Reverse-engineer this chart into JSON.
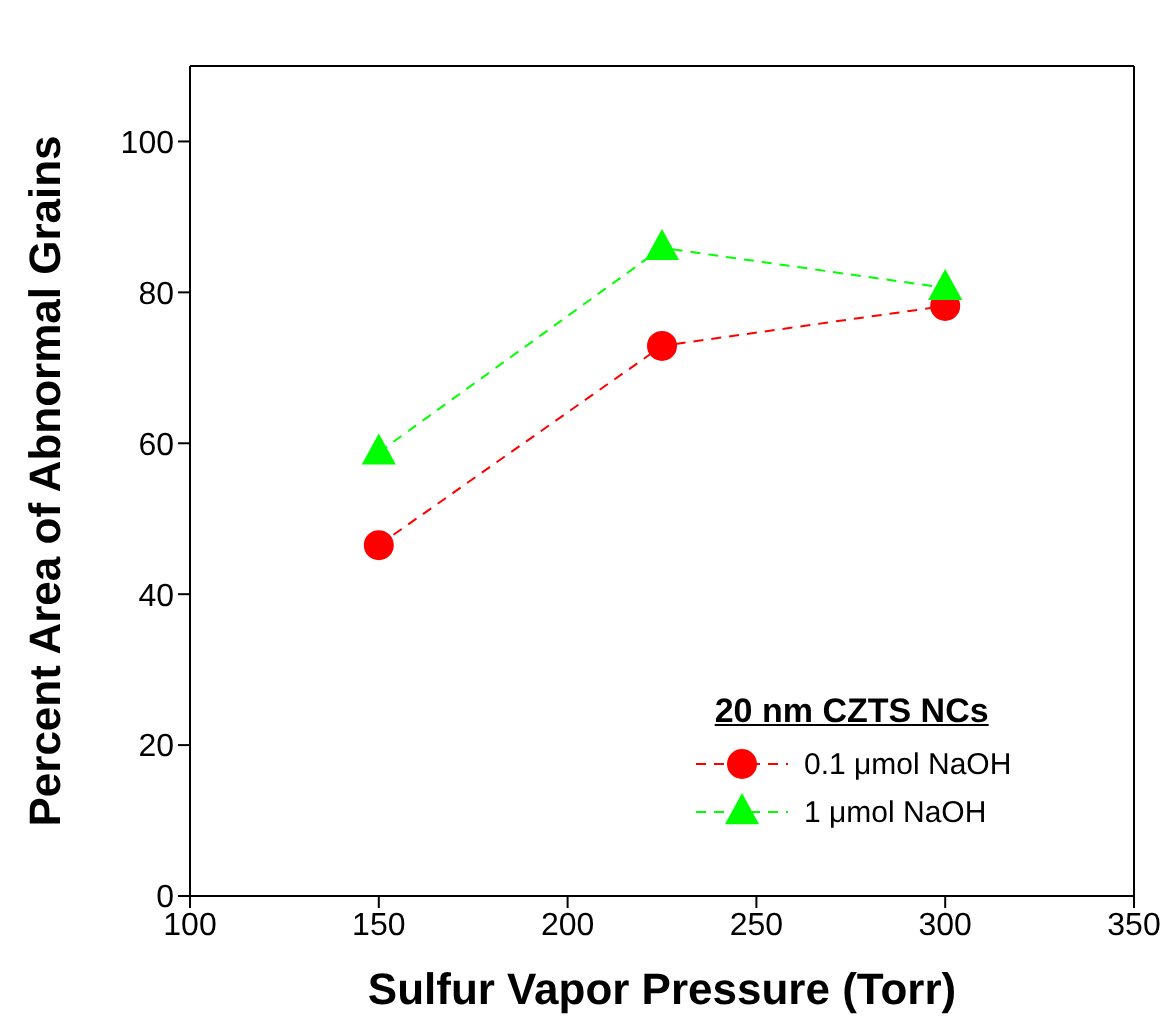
{
  "chart_data": {
    "type": "line",
    "xlabel": "Sulfur Vapor Pressure (Torr)",
    "ylabel": "Percent Area of Abnormal Grains",
    "legend_title": "20 nm CZTS NCs",
    "legend": "bottom right",
    "line_style": "dashed",
    "grid": false,
    "x": [
      150,
      225,
      300
    ],
    "xlim": [
      100,
      350
    ],
    "xticks": [
      100,
      150,
      200,
      250,
      300,
      350
    ],
    "ylim": [
      0,
      110
    ],
    "yticks": [
      0,
      20,
      40,
      60,
      80,
      100
    ],
    "series": [
      {
        "name": "0.1 μmol NaOH",
        "color": "#ff0000",
        "marker": "circle",
        "values": [
          46.5,
          72.9,
          78.2
        ]
      },
      {
        "name": "1 μmol NaOH",
        "color": "#00ff00",
        "marker": "triangle",
        "values": [
          58.8,
          85.9,
          80.6
        ]
      }
    ]
  }
}
